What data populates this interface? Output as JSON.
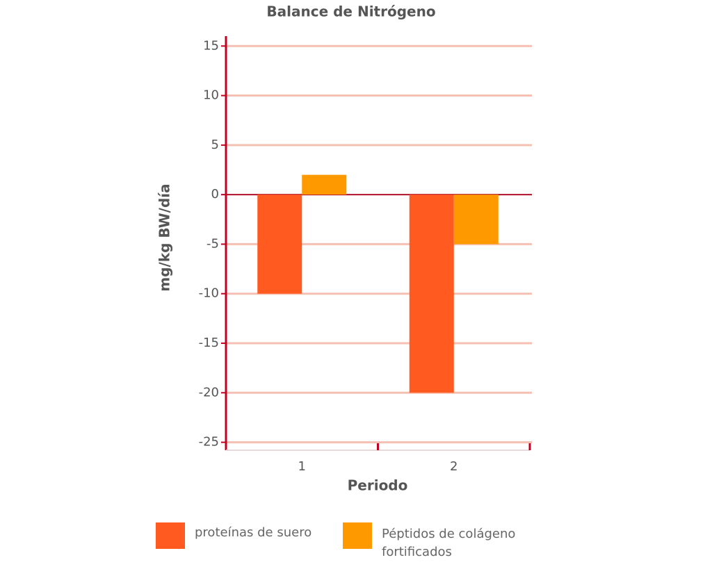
{
  "chart_data": {
    "type": "bar",
    "title": "Balance de Nitrógeno",
    "ylabel": "mg/kg BW/día",
    "xlabel": "Periodo",
    "categories": [
      "1",
      "2"
    ],
    "series": [
      {
        "name": "proteínas de suero",
        "color": "#ff5a1f",
        "values": [
          -10,
          -20
        ]
      },
      {
        "name": "Péptidos de colágeno fortificados",
        "color": "#ff9900",
        "values": [
          2,
          -5
        ]
      }
    ],
    "ylim": [
      -25.8,
      16
    ],
    "yticks": [
      -25,
      -20,
      -15,
      -10,
      -5,
      0,
      5,
      10,
      15
    ],
    "grid": true
  }
}
